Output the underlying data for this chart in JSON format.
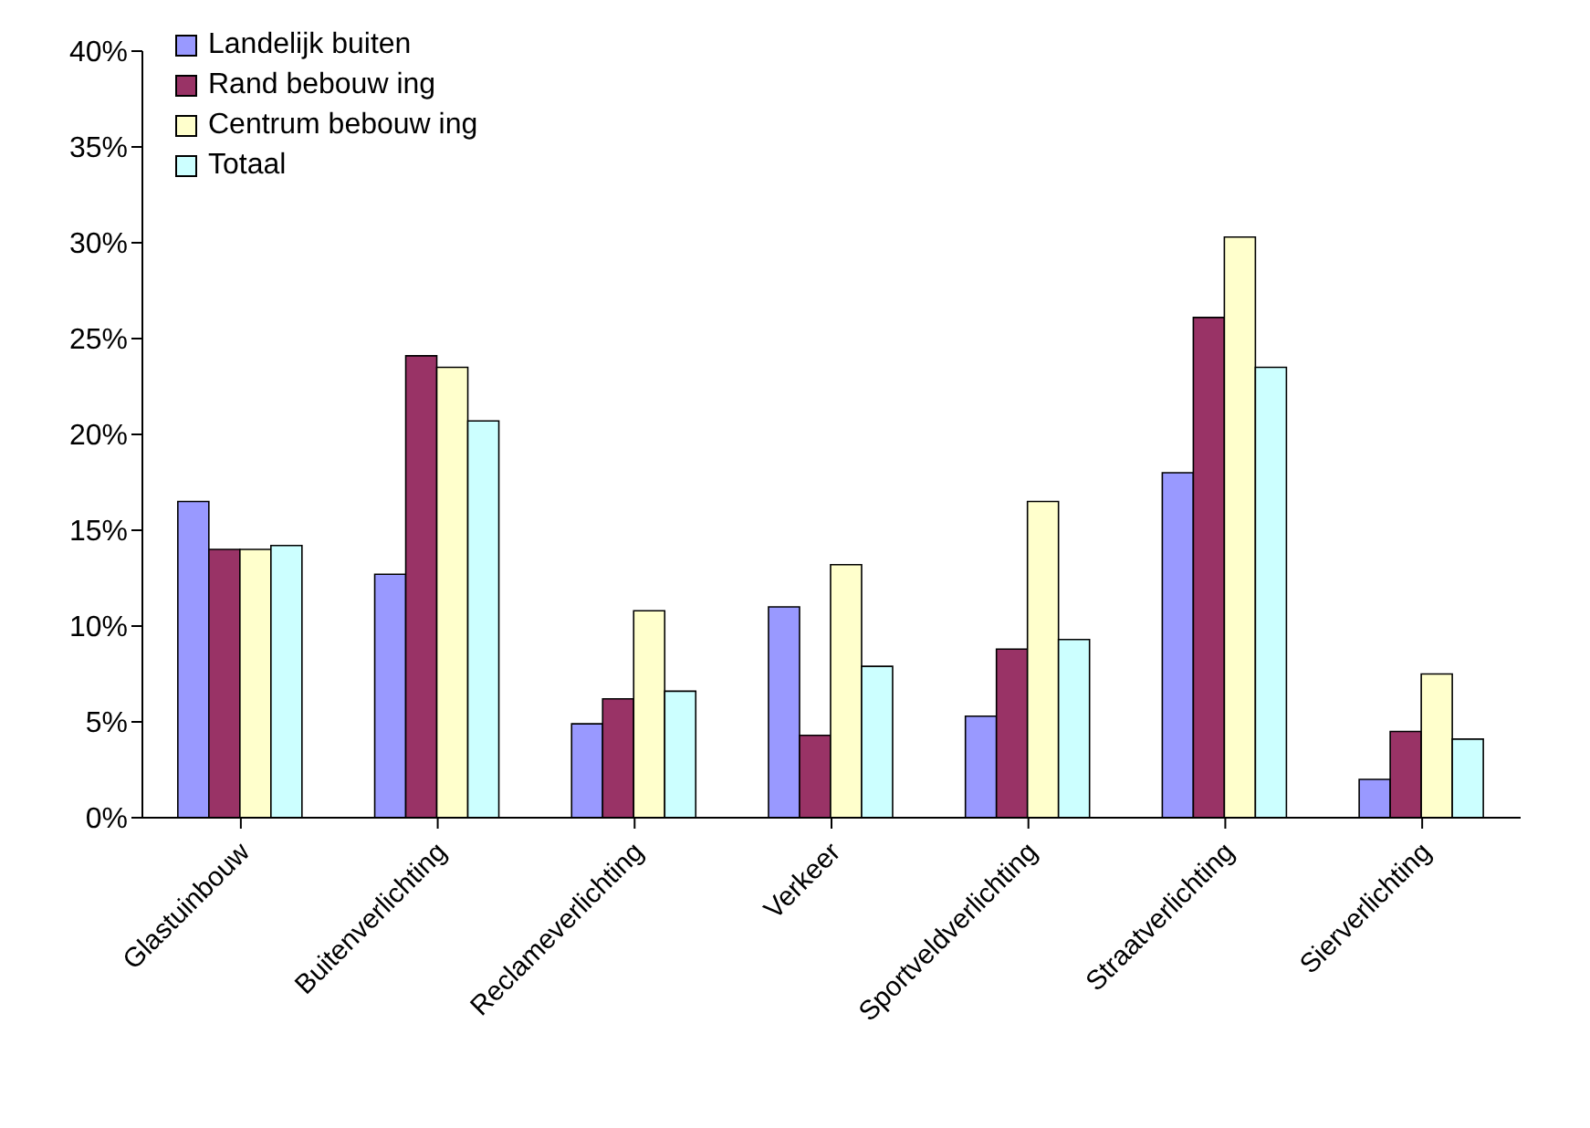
{
  "chart_data": {
    "type": "bar",
    "categories": [
      "Glastuinbouw",
      "Buitenverlichting",
      "Reclameverlichting",
      "Verkeer",
      "Sportveldverlichting",
      "Straatverlichting",
      "Sierverlichting"
    ],
    "series": [
      {
        "name": "Landelijk buiten",
        "color": "#9999ff",
        "values": [
          16.5,
          12.7,
          4.9,
          11.0,
          5.3,
          18.0,
          2.0
        ]
      },
      {
        "name": "Rand bebouw ing",
        "color": "#993366",
        "values": [
          14.0,
          24.1,
          6.2,
          4.3,
          8.8,
          26.1,
          4.5
        ]
      },
      {
        "name": "Centrum bebouw ing",
        "color": "#ffffcc",
        "values": [
          14.0,
          23.5,
          10.8,
          13.2,
          16.5,
          30.3,
          7.5
        ]
      },
      {
        "name": "Totaal",
        "color": "#ccffff",
        "values": [
          14.2,
          20.7,
          6.6,
          7.9,
          9.3,
          23.5,
          4.1
        ]
      }
    ],
    "ylim": [
      0,
      40
    ],
    "yticks": [
      {
        "value": 0,
        "label": "0%"
      },
      {
        "value": 5,
        "label": "5%"
      },
      {
        "value": 10,
        "label": "10%"
      },
      {
        "value": 15,
        "label": "15%"
      },
      {
        "value": 20,
        "label": "20%"
      },
      {
        "value": 25,
        "label": "25%"
      },
      {
        "value": 30,
        "label": "30%"
      },
      {
        "value": 35,
        "label": "35%"
      },
      {
        "value": 40,
        "label": "40%"
      }
    ],
    "grid": false,
    "legend": "top left"
  }
}
